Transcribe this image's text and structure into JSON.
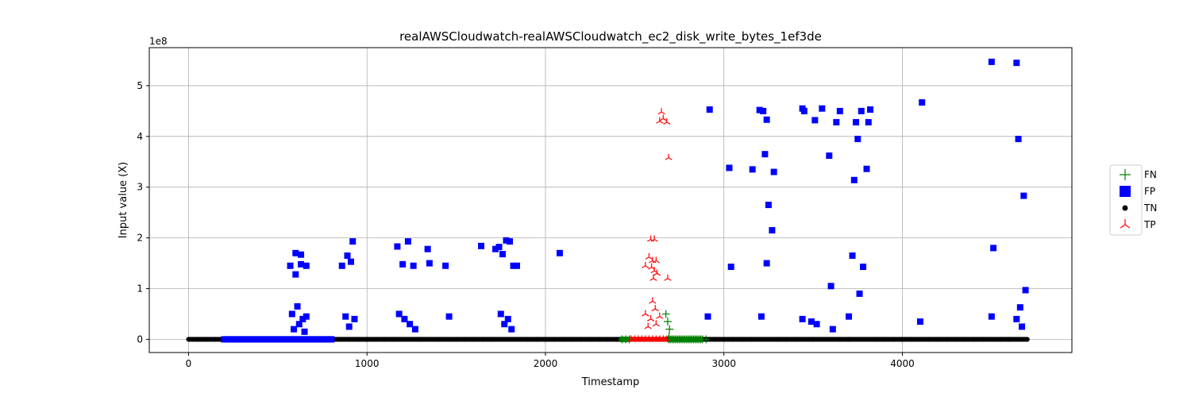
{
  "chart_data": {
    "type": "scatter",
    "title": "realAWSCloudwatch-realAWSCloudwatch_ec2_disk_write_bytes_1ef3de",
    "xlabel": "Timestamp",
    "ylabel": "Input value (X)",
    "y_offset_label": "1e8",
    "xlim": [
      -220,
      4950
    ],
    "ylim": [
      -0.26,
      5.75
    ],
    "y_scale_note": "values in units of 1e8",
    "xticks": [
      0,
      1000,
      2000,
      3000,
      4000
    ],
    "xtick_labels": [
      "0",
      "1000",
      "2000",
      "3000",
      "4000"
    ],
    "yticks": [
      0,
      1,
      2,
      3,
      4,
      5
    ],
    "ytick_labels": [
      "0",
      "1",
      "2",
      "3",
      "4",
      "5"
    ],
    "grid": true,
    "legend_position": "right",
    "series": [
      {
        "name": "FN",
        "marker": "plus",
        "color": "#008000",
        "x": [
          2690,
          2700,
          2710,
          2720,
          2730,
          2740,
          2750,
          2760,
          2770,
          2780,
          2790,
          2800,
          2810,
          2820,
          2830,
          2840,
          2850,
          2860,
          2870,
          2880,
          2900,
          2450,
          2470,
          2430,
          2675,
          2685,
          2695,
          2692
        ],
        "y": [
          0,
          0,
          0,
          0,
          0,
          0,
          0,
          0,
          0,
          0,
          0,
          0,
          0,
          0,
          0,
          0,
          0,
          0,
          0,
          0,
          0,
          0,
          0,
          0,
          0.5,
          0.35,
          0.2,
          0.05
        ]
      },
      {
        "name": "FP",
        "marker": "square",
        "color": "#0000ff",
        "x": [
          200,
          230,
          260,
          290,
          320,
          350,
          380,
          410,
          440,
          470,
          500,
          530,
          560,
          590,
          620,
          650,
          680,
          710,
          740,
          770,
          800,
          570,
          600,
          630,
          660,
          580,
          610,
          640,
          590,
          620,
          650,
          600,
          630,
          660,
          860,
          890,
          920,
          910,
          880,
          930,
          900,
          1170,
          1200,
          1230,
          1260,
          1180,
          1210,
          1240,
          1270,
          1340,
          1350,
          1440,
          1460,
          1640,
          1720,
          1740,
          1760,
          1780,
          1800,
          1820,
          1840,
          1750,
          1770,
          1790,
          1810,
          2080,
          2920,
          3030,
          3040,
          3160,
          3200,
          3220,
          3230,
          3240,
          3250,
          3270,
          3280,
          3440,
          3450,
          3510,
          3550,
          3590,
          3600,
          3630,
          3650,
          3730,
          3740,
          3750,
          3770,
          3780,
          3800,
          3810,
          3820,
          4110,
          4500,
          4510,
          4640,
          4650,
          4660,
          4680,
          4690,
          2910,
          3210,
          3240,
          3440,
          3490,
          3520,
          3610,
          3700,
          3720,
          3760,
          4500,
          4640,
          4670,
          4100
        ],
        "y": [
          0,
          0,
          0,
          0,
          0,
          0,
          0,
          0,
          0,
          0,
          0,
          0,
          0,
          0,
          0,
          0,
          0,
          0,
          0,
          0,
          0,
          1.45,
          1.7,
          1.67,
          1.45,
          0.5,
          0.65,
          0.4,
          0.2,
          0.3,
          0.15,
          1.28,
          1.48,
          0.45,
          1.45,
          1.65,
          1.93,
          1.53,
          0.45,
          0.4,
          0.25,
          1.83,
          1.48,
          1.93,
          1.45,
          0.5,
          0.4,
          0.3,
          0.2,
          1.78,
          1.5,
          1.45,
          0.45,
          1.84,
          1.78,
          1.82,
          1.68,
          1.95,
          1.93,
          1.45,
          1.45,
          0.5,
          0.3,
          0.4,
          0.2,
          1.7,
          4.53,
          3.38,
          1.43,
          3.35,
          4.52,
          4.5,
          3.65,
          4.33,
          2.65,
          2.15,
          3.3,
          4.55,
          4.5,
          4.32,
          4.55,
          3.62,
          1.05,
          4.28,
          4.5,
          3.14,
          4.28,
          3.95,
          4.5,
          1.43,
          3.36,
          4.28,
          4.53,
          4.67,
          5.47,
          1.8,
          5.45,
          3.95,
          0.63,
          2.83,
          0.97,
          0.45,
          0.45,
          1.5,
          0.4,
          0.35,
          0.3,
          0.2,
          0.45,
          1.65,
          0.9,
          0.45,
          0.4,
          0.25,
          0.35
        ]
      },
      {
        "name": "TN",
        "marker": "circle",
        "color": "#000000",
        "x": [
          0,
          50,
          100,
          150,
          180,
          820,
          850,
          900,
          950,
          1000,
          1050,
          1100,
          1150,
          1300,
          1400,
          1500,
          1550,
          1600,
          1650,
          1700,
          1900,
          1950,
          2000,
          2050,
          2100,
          2150,
          2200,
          2250,
          2300,
          2350,
          2400,
          2950,
          3000,
          3050,
          3100,
          3150,
          3300,
          3350,
          3400,
          3500,
          3650,
          3700,
          3850,
          3900,
          3950,
          4000,
          4050,
          4150,
          4200,
          4250,
          4300,
          4350,
          4400,
          4450,
          4550,
          4600,
          4700
        ],
        "y": [
          0,
          0,
          0,
          0,
          0,
          0,
          0,
          0,
          0,
          0,
          0,
          0,
          0,
          0,
          0,
          0,
          0,
          0,
          0,
          0,
          0,
          0,
          0,
          0,
          0,
          0,
          0,
          0,
          0,
          0,
          0,
          0,
          0,
          0,
          0,
          0,
          0,
          0,
          0,
          0,
          0,
          0,
          0,
          0,
          0,
          0,
          0,
          0,
          0,
          0,
          0,
          0,
          0,
          0,
          0,
          0,
          0
        ]
      },
      {
        "name": "TP",
        "marker": "tri_up",
        "color": "#ff0000",
        "x": [
          2480,
          2500,
          2520,
          2540,
          2560,
          2580,
          2600,
          2620,
          2640,
          2660,
          2680,
          2650,
          2660,
          2640,
          2680,
          2690,
          2590,
          2610,
          2580,
          2600,
          2620,
          2560,
          2610,
          2595,
          2625,
          2605,
          2685,
          2560,
          2590,
          2620,
          2640,
          2600,
          2575,
          2615
        ],
        "y": [
          0,
          0,
          0,
          0,
          0,
          0,
          0,
          0,
          0,
          0,
          0,
          4.48,
          4.35,
          4.3,
          4.28,
          3.58,
          1.97,
          1.97,
          1.62,
          1.55,
          1.55,
          1.45,
          1.35,
          1.42,
          1.3,
          1.2,
          1.2,
          0.5,
          0.4,
          0.3,
          0.45,
          0.75,
          0.25,
          0.6
        ]
      }
    ]
  }
}
